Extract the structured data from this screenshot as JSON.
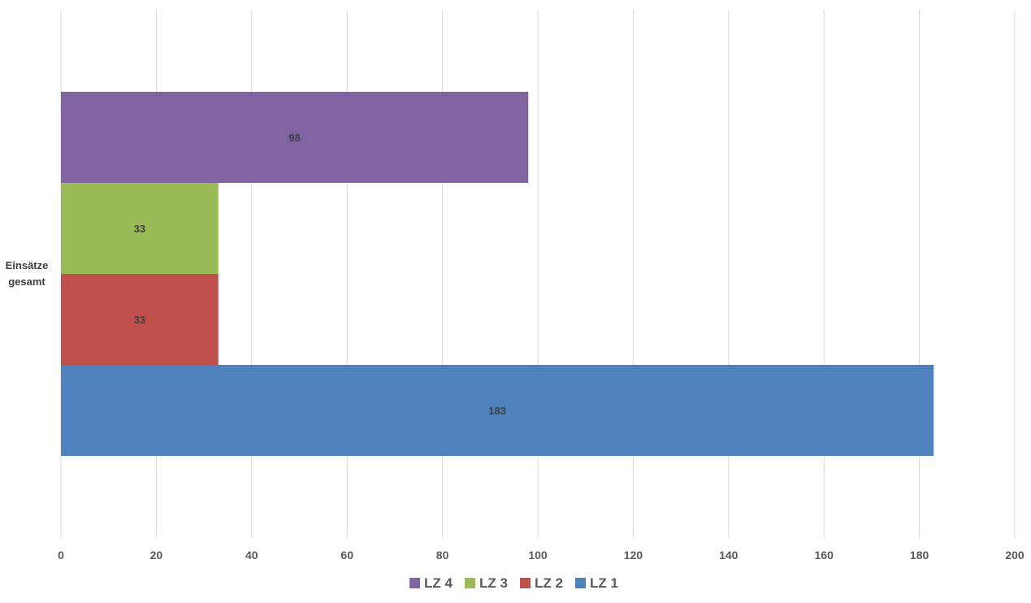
{
  "chart_data": {
    "type": "bar",
    "orientation": "horizontal",
    "categories": [
      "Einsätze gesamt"
    ],
    "category_label_lines": [
      "Einsätze",
      "gesamt"
    ],
    "series": [
      {
        "name": "LZ 1",
        "values": [
          183
        ],
        "color": "#4F81BD"
      },
      {
        "name": "LZ 2",
        "values": [
          33
        ],
        "color": "#C0504D"
      },
      {
        "name": "LZ 3",
        "values": [
          33
        ],
        "color": "#9BBB59"
      },
      {
        "name": "LZ 4",
        "values": [
          98
        ],
        "color": "#8064A2"
      }
    ],
    "xlim": [
      0,
      200
    ],
    "x_ticks": [
      0,
      20,
      40,
      60,
      80,
      100,
      120,
      140,
      160,
      180,
      200
    ],
    "grid": true,
    "data_labels": true,
    "legend": {
      "position": "bottom",
      "order": [
        "LZ 4",
        "LZ 3",
        "LZ 2",
        "LZ 1"
      ]
    },
    "title": "",
    "xlabel": "",
    "ylabel": ""
  }
}
